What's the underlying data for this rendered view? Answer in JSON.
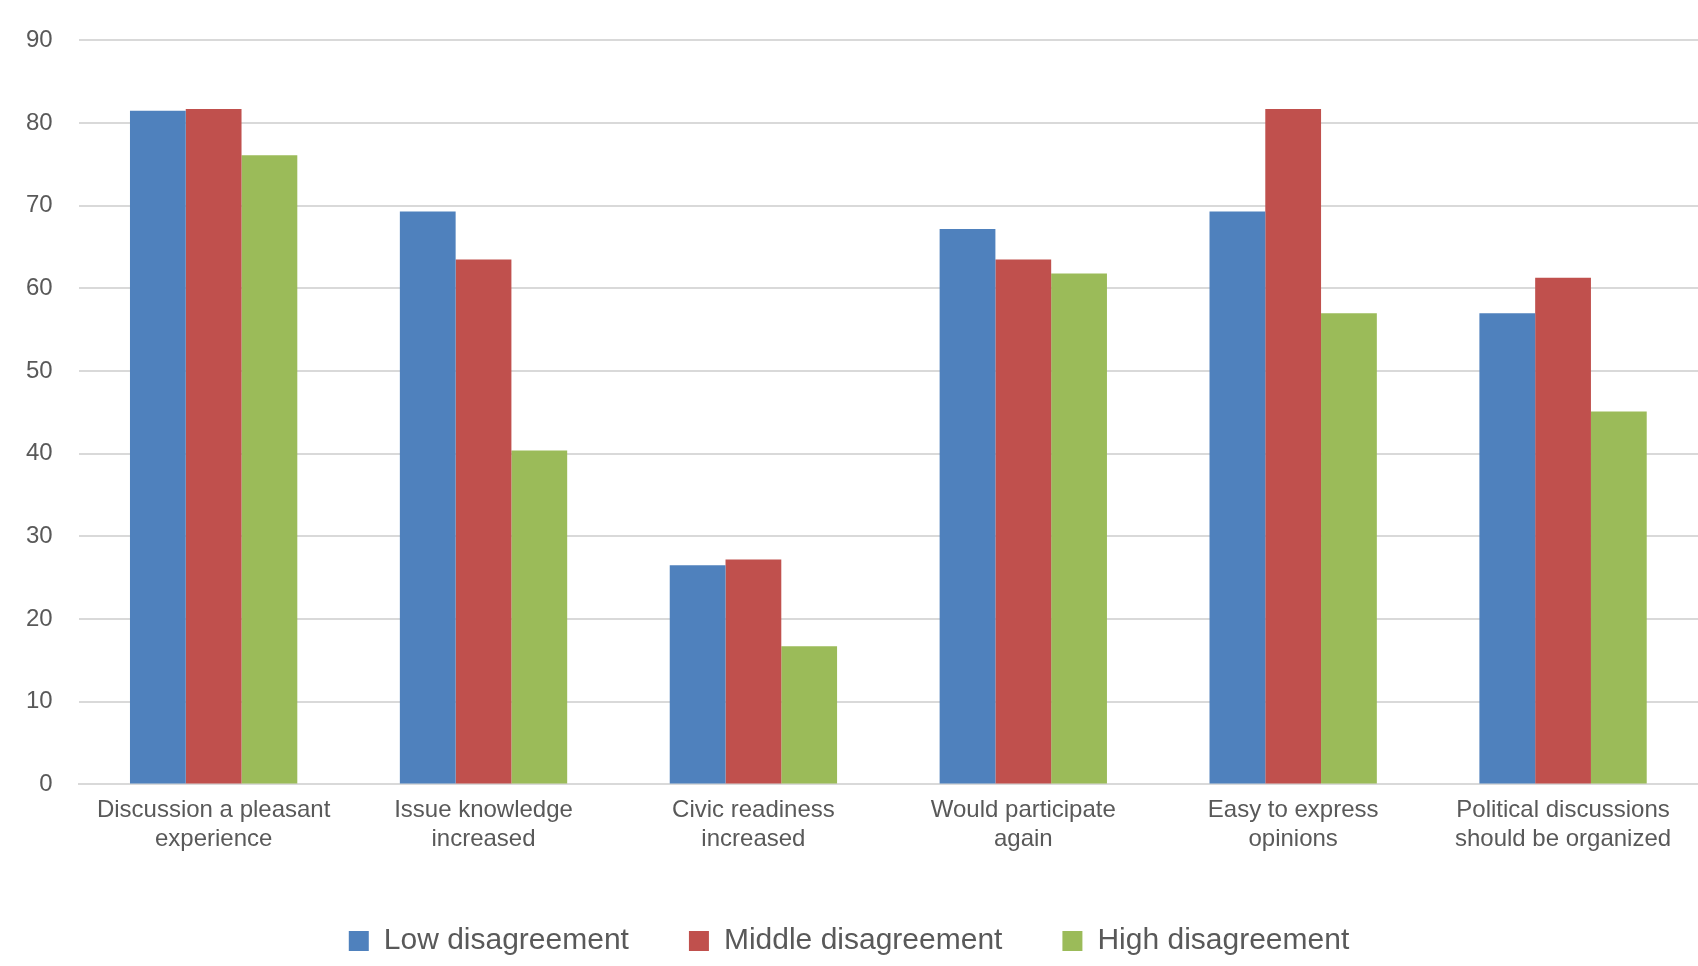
{
  "chart_data": {
    "type": "bar",
    "categories": [
      "Discussion a pleasant experience",
      "Issue knowledge increased",
      "Civic readiness increased",
      "Would participate again",
      "Easy to express opinions",
      "Political discussions should be organized"
    ],
    "series": [
      {
        "name": "Low disagreement",
        "color": "#4f81bd",
        "values": [
          81.5,
          69.3,
          26.5,
          67.2,
          69.3,
          57.0
        ]
      },
      {
        "name": "Middle disagreement",
        "color": "#c0504d",
        "values": [
          81.7,
          63.5,
          27.2,
          63.5,
          81.7,
          61.3
        ]
      },
      {
        "name": "High disagreement",
        "color": "#9bbb59",
        "values": [
          76.1,
          40.4,
          16.7,
          61.8,
          57.0,
          45.1
        ]
      }
    ],
    "ylim": [
      0,
      90
    ],
    "yticks": [
      0,
      10,
      20,
      30,
      40,
      50,
      60,
      70,
      80,
      90
    ],
    "grid": "y",
    "legend": "bottom"
  }
}
